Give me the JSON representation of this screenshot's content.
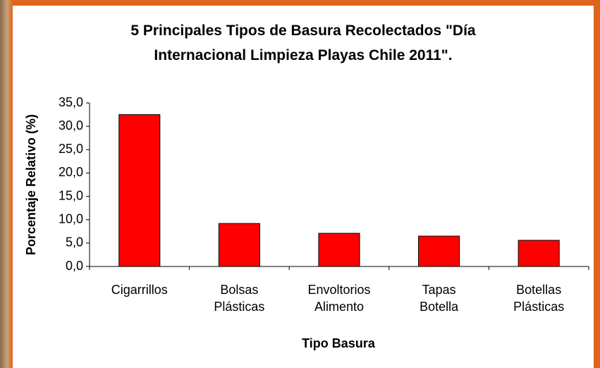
{
  "chart_data": {
    "type": "bar",
    "title": "5 Principales Tipos de Basura Recolectados \"Día Internacional Limpieza Playas Chile 2011\".",
    "x_label": "Tipo Basura",
    "y_label": "Porcentaje Relativo (%)",
    "categories": [
      "Cigarrillos",
      "Bolsas Plásticas",
      "Envoltorios Alimento",
      "Tapas Botella",
      "Botellas Plásticas"
    ],
    "values": [
      32.5,
      9.2,
      7.1,
      6.5,
      5.6
    ],
    "color": "#ff0000",
    "ylim": [
      0,
      35
    ],
    "yticks": [
      {
        "value": 0,
        "label": "0,0"
      },
      {
        "value": 5,
        "label": "5,0"
      },
      {
        "value": 10,
        "label": "10,0"
      },
      {
        "value": 15,
        "label": "15,0"
      },
      {
        "value": 20,
        "label": "20,0"
      },
      {
        "value": 25,
        "label": "25,0"
      },
      {
        "value": 30,
        "label": "30,0"
      },
      {
        "value": 35,
        "label": "35,0"
      }
    ],
    "grid": false
  }
}
